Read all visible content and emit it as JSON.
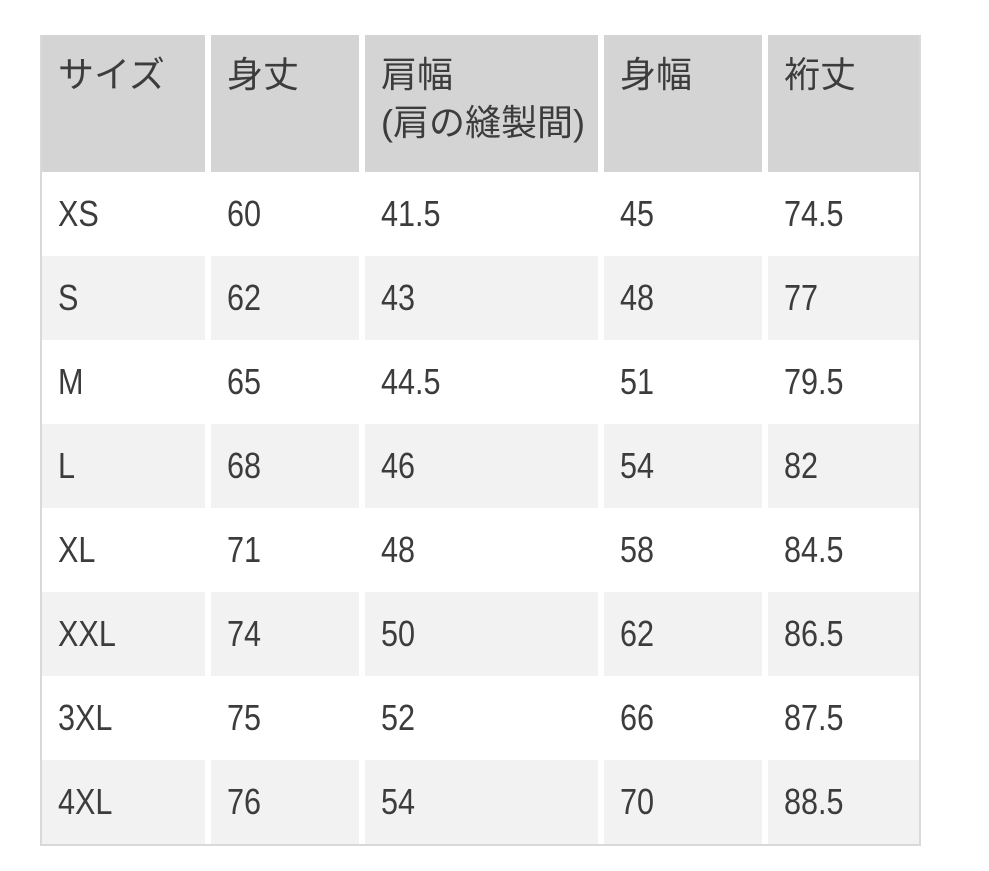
{
  "table": {
    "columns": [
      {
        "label": "サイズ"
      },
      {
        "label": "身丈"
      },
      {
        "label": "肩幅\n(肩の縫製間)"
      },
      {
        "label": "身幅"
      },
      {
        "label": "裄丈"
      }
    ],
    "rows": [
      {
        "size": "XS",
        "values": [
          "60",
          "41.5",
          "45",
          "74.5"
        ]
      },
      {
        "size": "S",
        "values": [
          "62",
          "43",
          "48",
          "77"
        ]
      },
      {
        "size": "M",
        "values": [
          "65",
          "44.5",
          "51",
          "79.5"
        ]
      },
      {
        "size": "L",
        "values": [
          "68",
          "46",
          "54",
          "82"
        ]
      },
      {
        "size": "XL",
        "values": [
          "71",
          "48",
          "58",
          "84.5"
        ]
      },
      {
        "size": "XXL",
        "values": [
          "74",
          "50",
          "62",
          "86.5"
        ]
      },
      {
        "size": "3XL",
        "values": [
          "75",
          "52",
          "66",
          "87.5"
        ]
      },
      {
        "size": "4XL",
        "values": [
          "76",
          "54",
          "70",
          "88.5"
        ]
      }
    ]
  },
  "colors": {
    "header_background": "#d4d4d4",
    "zebra_row_background": "#f2f2f2",
    "row_background": "#ffffff",
    "column_gap": "#ffffff",
    "table_border": "#d9d9d9",
    "text": "#3c3c3c"
  }
}
